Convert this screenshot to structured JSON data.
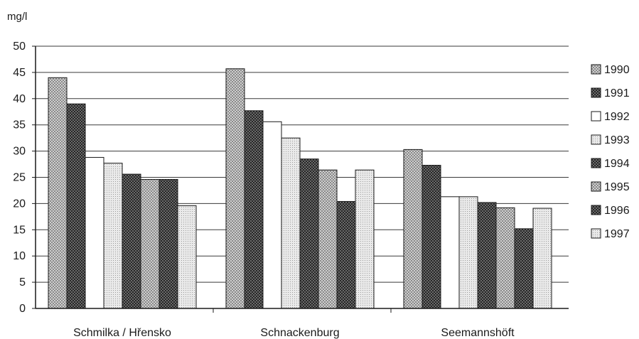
{
  "chart_data": {
    "type": "bar",
    "ylabel": "mg/l",
    "ylim": [
      0,
      50
    ],
    "yticks": [
      0,
      5,
      10,
      15,
      20,
      25,
      30,
      35,
      40,
      45,
      50
    ],
    "grid": true,
    "legend_position": "right",
    "categories": [
      "Schmilka / Hřensko",
      "Schnackenburg",
      "Seemannshöft"
    ],
    "series": [
      {
        "name": "1990",
        "values": [
          44,
          45.7,
          30.3
        ],
        "pattern": "light-checker"
      },
      {
        "name": "1991",
        "values": [
          39,
          37.7,
          27.3
        ],
        "pattern": "dark-checker"
      },
      {
        "name": "1992",
        "values": [
          28.8,
          35.6,
          21.3
        ],
        "pattern": "white"
      },
      {
        "name": "1993",
        "values": [
          27.7,
          32.5,
          21.3
        ],
        "pattern": "light-dots"
      },
      {
        "name": "1994",
        "values": [
          25.6,
          28.5,
          20.2
        ],
        "pattern": "dark-checker"
      },
      {
        "name": "1995",
        "values": [
          24.6,
          26.4,
          19.2
        ],
        "pattern": "light-checker"
      },
      {
        "name": "1996",
        "values": [
          24.6,
          20.4,
          15.2
        ],
        "pattern": "dark-checker"
      },
      {
        "name": "1997",
        "values": [
          19.6,
          26.4,
          19.1
        ],
        "pattern": "light-dots"
      }
    ]
  }
}
